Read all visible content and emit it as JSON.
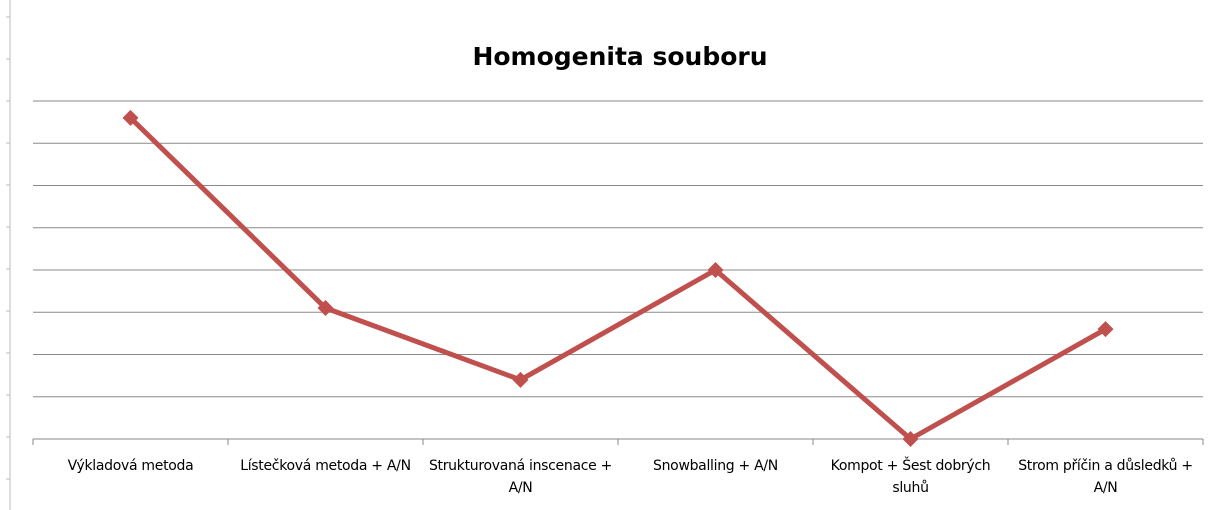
{
  "chart_data": {
    "type": "line",
    "title": "Homogenita souboru",
    "categories": [
      "Výkladová metoda",
      "Lístečková metoda + A/N",
      "Strukturovaná inscenace + A/N",
      "Snowballing + A/N",
      "Kompot + Šest dobrých sluhů",
      "Strom příčin a důsledků + A/N"
    ],
    "series": [
      {
        "color": "#c0504d",
        "values": [
          7.6,
          3.1,
          1.4,
          4.0,
          0,
          2.6
        ]
      }
    ],
    "ylim": [
      0,
      8
    ],
    "yticks": [
      0,
      1,
      2,
      3,
      4,
      5,
      6,
      7,
      8
    ],
    "grid": true
  }
}
